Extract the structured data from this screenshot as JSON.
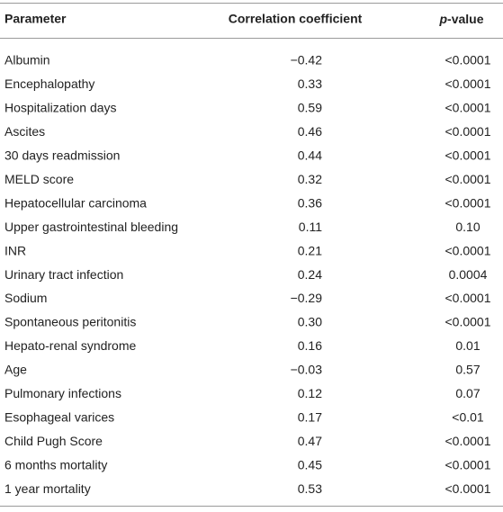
{
  "table": {
    "header": [
      "Parameter",
      "Correlation coefficient",
      {
        "italic": "p",
        "rest": "-value"
      }
    ],
    "rows": [
      [
        "Albumin",
        "−0.42",
        "<0.0001"
      ],
      [
        "Encephalopathy",
        "0.33",
        "<0.0001"
      ],
      [
        "Hospitalization days",
        "0.59",
        "<0.0001"
      ],
      [
        "Ascites",
        "0.46",
        "<0.0001"
      ],
      [
        "30 days readmission",
        "0.44",
        "<0.0001"
      ],
      [
        "MELD score",
        "0.32",
        "<0.0001"
      ],
      [
        "Hepatocellular carcinoma",
        "0.36",
        "<0.0001"
      ],
      [
        "Upper gastrointestinal bleeding",
        "0.11",
        "0.10"
      ],
      [
        "INR",
        "0.21",
        "<0.0001"
      ],
      [
        "Urinary tract infection",
        "0.24",
        "0.0004"
      ],
      [
        "Sodium",
        "−0.29",
        "<0.0001"
      ],
      [
        "Spontaneous peritonitis",
        "0.30",
        "<0.0001"
      ],
      [
        "Hepato-renal syndrome",
        "0.16",
        "0.01"
      ],
      [
        "Age",
        "−0.03",
        "0.57"
      ],
      [
        "Pulmonary infections",
        "0.12",
        "0.07"
      ],
      [
        "Esophageal varices",
        "0.17",
        "<0.01"
      ],
      [
        "Child Pugh Score",
        "0.47",
        "<0.0001"
      ],
      [
        "6 months mortality",
        "0.45",
        "<0.0001"
      ],
      [
        "1 year mortality",
        "0.53",
        "<0.0001"
      ]
    ]
  }
}
